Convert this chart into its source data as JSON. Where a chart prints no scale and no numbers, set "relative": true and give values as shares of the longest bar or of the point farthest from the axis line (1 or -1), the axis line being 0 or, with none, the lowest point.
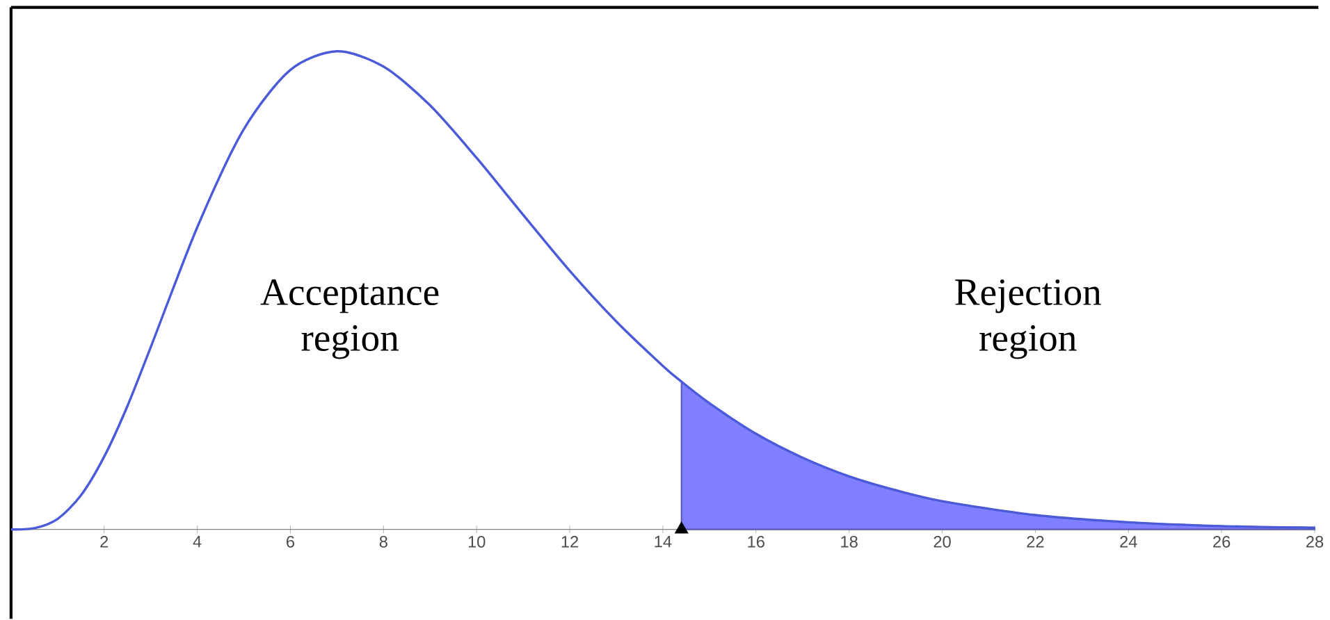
{
  "chart_data": {
    "type": "line",
    "relative": true,
    "xlim": [
      0,
      28
    ],
    "xticks": [
      2,
      4,
      6,
      8,
      10,
      12,
      14,
      16,
      18,
      20,
      22,
      24,
      26,
      28
    ],
    "tick_labels": "x",
    "grid": false,
    "series": [
      {
        "type": "area",
        "color": "#8080ff",
        "x": [
          14.4,
          15,
          16,
          17,
          18,
          19,
          20,
          22,
          24,
          26,
          28
        ],
        "values": [
          0.309,
          0.264,
          0.2,
          0.15,
          0.111,
          0.082,
          0.059,
          0.03,
          0.015,
          0.007,
          0.0035
        ]
      },
      {
        "color": "#4a5ad8",
        "x": [
          0,
          0.5,
          1,
          1.5,
          2,
          2.5,
          3,
          4,
          5,
          6,
          7,
          8,
          9,
          10,
          11,
          12,
          13,
          14,
          14.4,
          15,
          16,
          17,
          18,
          19,
          20,
          22,
          24,
          26,
          28
        ],
        "values": [
          0,
          0.0025,
          0.022,
          0.071,
          0.152,
          0.258,
          0.381,
          0.632,
          0.837,
          0.961,
          1,
          0.968,
          0.887,
          0.777,
          0.658,
          0.541,
          0.435,
          0.342,
          0.309,
          0.264,
          0.2,
          0.15,
          0.111,
          0.082,
          0.059,
          0.03,
          0.015,
          0.007,
          0.0035
        ]
      },
      {
        "type": "scatter",
        "color": "#000000",
        "marker": "triangle",
        "x": [
          14.4
        ],
        "values": [
          0
        ]
      }
    ],
    "annotations": [
      "Acceptance region",
      "Rejection region"
    ]
  }
}
